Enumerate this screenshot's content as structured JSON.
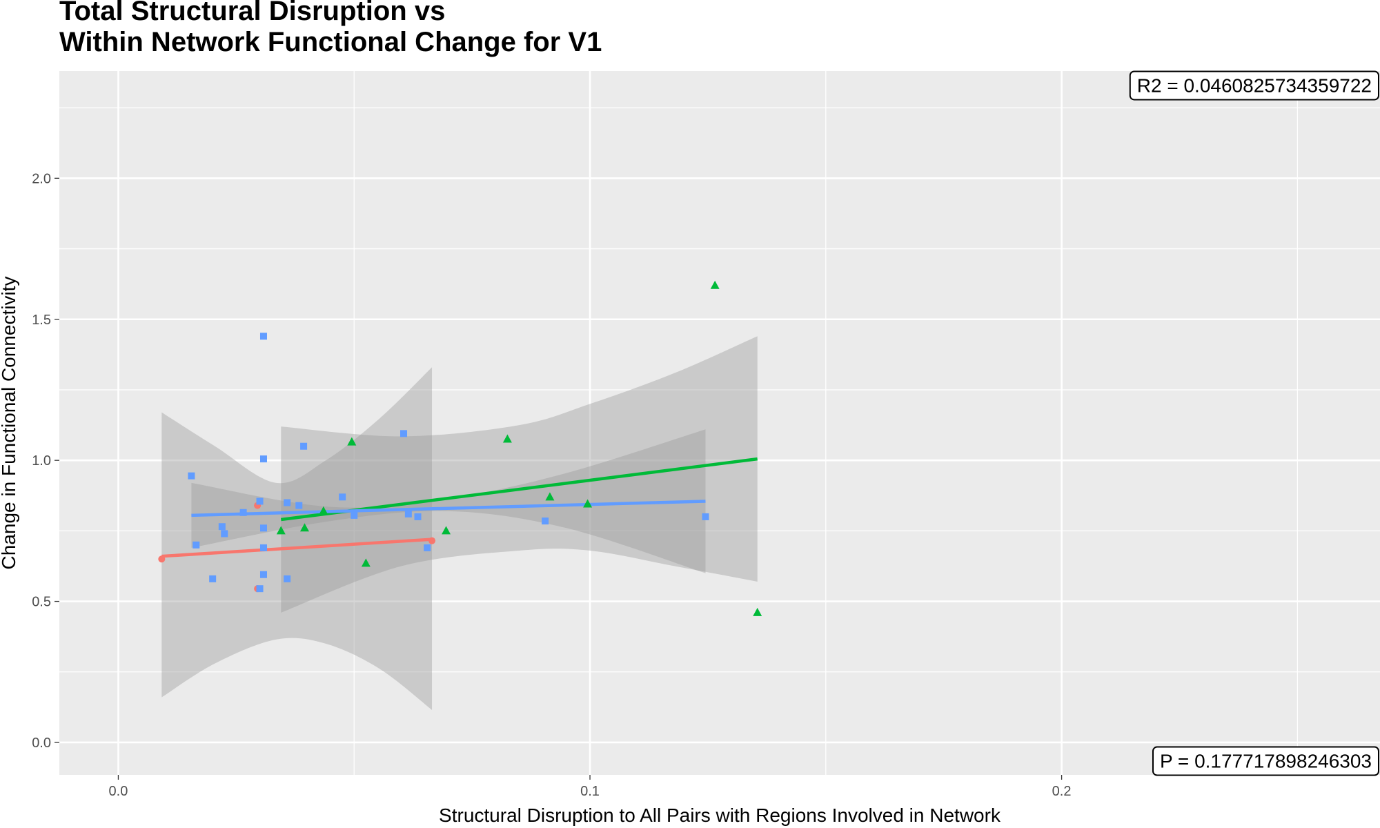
{
  "chart_data": {
    "type": "scatter",
    "title_lines": [
      "Total Structural Disruption vs",
      "Within Network Functional Change for V1"
    ],
    "xlabel": "Structural Disruption to All Pairs with Regions Involved in Network",
    "ylabel": "Change in Functional Connectivity",
    "xlim": [
      -0.0125,
      0.2675
    ],
    "ylim": [
      -0.115,
      2.38
    ],
    "x_ticks": [
      0.0,
      0.1,
      0.2
    ],
    "x_tick_labels": [
      "0.0",
      "0.1",
      "0.2"
    ],
    "y_ticks": [
      0.0,
      0.5,
      1.0,
      1.5,
      2.0
    ],
    "y_tick_labels": [
      "0.0",
      "0.5",
      "1.0",
      "1.5",
      "2.0"
    ],
    "grid": true,
    "legend": "none",
    "annotations": [
      {
        "label": "R2 =  0.0460825734359722",
        "x": 0.2675,
        "y": 2.33,
        "placement": "top-right"
      },
      {
        "label": "P =  0.177717898246303",
        "x": 0.2675,
        "y": -0.065,
        "placement": "bottom-right"
      }
    ],
    "series": [
      {
        "name": "group-red",
        "color": "#F8766D",
        "shape": "circle",
        "points": [
          [
            0.0092,
            0.65
          ],
          [
            0.0295,
            0.84
          ],
          [
            0.0295,
            0.545
          ],
          [
            0.0665,
            0.715
          ]
        ],
        "fit": {
          "x": [
            0.0092,
            0.0665
          ],
          "y": [
            0.66,
            0.72
          ]
        },
        "ci_upper": [
          [
            0.0092,
            1.17
          ],
          [
            0.0205,
            1.05
          ],
          [
            0.0335,
            0.92
          ],
          [
            0.044,
            1.0
          ],
          [
            0.0555,
            1.15
          ],
          [
            0.0665,
            1.33
          ]
        ],
        "ci_lower": [
          [
            0.0092,
            0.16
          ],
          [
            0.0205,
            0.28
          ],
          [
            0.0335,
            0.365
          ],
          [
            0.044,
            0.35
          ],
          [
            0.0555,
            0.26
          ],
          [
            0.0665,
            0.115
          ]
        ]
      },
      {
        "name": "group-green",
        "color": "#00BA38",
        "shape": "triangle",
        "points": [
          [
            0.0345,
            0.75
          ],
          [
            0.0395,
            0.76
          ],
          [
            0.0435,
            0.82
          ],
          [
            0.0495,
            1.065
          ],
          [
            0.0525,
            0.635
          ],
          [
            0.0695,
            0.75
          ],
          [
            0.0825,
            1.075
          ],
          [
            0.0915,
            0.87
          ],
          [
            0.0995,
            0.845
          ],
          [
            0.1265,
            1.62
          ],
          [
            0.1355,
            0.46
          ]
        ],
        "fit": {
          "x": [
            0.0345,
            0.1355
          ],
          "y": [
            0.79,
            1.005
          ]
        },
        "ci_upper": [
          [
            0.0345,
            1.12
          ],
          [
            0.06,
            1.085
          ],
          [
            0.085,
            1.125
          ],
          [
            0.1,
            1.2
          ],
          [
            0.118,
            1.31
          ],
          [
            0.1355,
            1.44
          ]
        ],
        "ci_lower": [
          [
            0.0345,
            0.46
          ],
          [
            0.06,
            0.625
          ],
          [
            0.085,
            0.68
          ],
          [
            0.1,
            0.68
          ],
          [
            0.118,
            0.625
          ],
          [
            0.1355,
            0.57
          ]
        ]
      },
      {
        "name": "group-blue",
        "color": "#619CFF",
        "shape": "square",
        "points": [
          [
            0.0155,
            0.945
          ],
          [
            0.0165,
            0.7
          ],
          [
            0.02,
            0.58
          ],
          [
            0.022,
            0.765
          ],
          [
            0.0225,
            0.74
          ],
          [
            0.0265,
            0.815
          ],
          [
            0.03,
            0.855
          ],
          [
            0.03,
            0.545
          ],
          [
            0.0308,
            1.44
          ],
          [
            0.0308,
            1.005
          ],
          [
            0.0308,
            0.76
          ],
          [
            0.0308,
            0.69
          ],
          [
            0.0308,
            0.595
          ],
          [
            0.0358,
            0.85
          ],
          [
            0.0358,
            0.58
          ],
          [
            0.0383,
            0.84
          ],
          [
            0.0393,
            1.05
          ],
          [
            0.0475,
            0.87
          ],
          [
            0.05,
            0.805
          ],
          [
            0.0605,
            1.095
          ],
          [
            0.0615,
            0.81
          ],
          [
            0.0635,
            0.8
          ],
          [
            0.0655,
            0.69
          ],
          [
            0.0905,
            0.785
          ],
          [
            0.1245,
            0.8
          ]
        ],
        "fit": {
          "x": [
            0.0155,
            0.1245
          ],
          "y": [
            0.805,
            0.855
          ]
        },
        "ci_upper": [
          [
            0.0155,
            0.92
          ],
          [
            0.045,
            0.835
          ],
          [
            0.07,
            0.865
          ],
          [
            0.095,
            0.955
          ],
          [
            0.1245,
            1.11
          ]
        ],
        "ci_lower": [
          [
            0.0155,
            0.69
          ],
          [
            0.045,
            0.785
          ],
          [
            0.07,
            0.82
          ],
          [
            0.095,
            0.76
          ],
          [
            0.1245,
            0.6
          ]
        ]
      }
    ]
  }
}
